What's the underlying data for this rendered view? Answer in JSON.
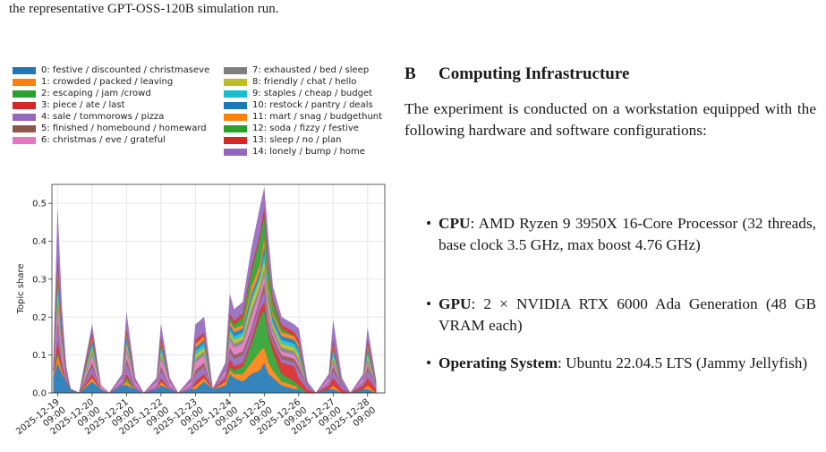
{
  "caption_tail": "the representative GPT-OSS-120B simulation run.",
  "legend": [
    {
      "label": "0: festive / discounted / christmaseve",
      "color": "#1f77b4"
    },
    {
      "label": "1: crowded / packed / leaving",
      "color": "#ff7f0e"
    },
    {
      "label": "2: escaping / jam /crowd",
      "color": "#2ca02c"
    },
    {
      "label": "3: piece / ate / last",
      "color": "#d62728"
    },
    {
      "label": "4: sale / tommorows / pizza",
      "color": "#9467bd"
    },
    {
      "label": "5: finished / homebound / homeward",
      "color": "#8c564b"
    },
    {
      "label": "6: christmas / eve / grateful",
      "color": "#e377c2"
    },
    {
      "label": "7: exhausted / bed / sleep",
      "color": "#7f7f7f"
    },
    {
      "label": "8: friendly / chat / hello",
      "color": "#bcbd22"
    },
    {
      "label": "9: staples / cheap / budget",
      "color": "#17becf"
    },
    {
      "label": "10: restock / pantry / deals",
      "color": "#1f77b4"
    },
    {
      "label": "11: mart / snag / budgethunt",
      "color": "#ff7f0e"
    },
    {
      "label": "12: soda / fizzy / festive",
      "color": "#2ca02c"
    },
    {
      "label": "13: sleep / no / plan",
      "color": "#d62728"
    },
    {
      "label": "14: lonely / bump / home",
      "color": "#9467bd"
    }
  ],
  "chart_data": {
    "type": "area",
    "stacked": true,
    "title": "",
    "xlabel": "",
    "ylabel": "Topic share",
    "ylim": [
      0,
      0.55
    ],
    "yticks": [
      "0.0",
      "0.1",
      "0.2",
      "0.3",
      "0.4",
      "0.5"
    ],
    "xticks": [
      "2025-12-19\n09:00",
      "2025-12-20\n09:00",
      "2025-12-21\n09:00",
      "2025-12-22\n09:00",
      "2025-12-23\n09:00",
      "2025-12-24\n09:00",
      "2025-12-25\n09:00",
      "2025-12-26\n09:00",
      "2025-12-27\n09:00",
      "2025-12-28\n09:00"
    ],
    "grid": true,
    "x": [
      "2025-12-19 06:00",
      "2025-12-19 09:00",
      "2025-12-19 12:00",
      "2025-12-19 15:00",
      "2025-12-19 18:00",
      "2025-12-20 00:00",
      "2025-12-20 09:00",
      "2025-12-20 15:00",
      "2025-12-20 21:00",
      "2025-12-21 06:00",
      "2025-12-21 09:00",
      "2025-12-21 15:00",
      "2025-12-21 21:00",
      "2025-12-22 06:00",
      "2025-12-22 09:00",
      "2025-12-22 15:00",
      "2025-12-22 21:00",
      "2025-12-23 06:00",
      "2025-12-23 09:00",
      "2025-12-23 15:00",
      "2025-12-23 21:00",
      "2025-12-24 06:00",
      "2025-12-24 09:00",
      "2025-12-24 12:00",
      "2025-12-24 18:00",
      "2025-12-25 00:00",
      "2025-12-25 06:00",
      "2025-12-25 09:00",
      "2025-12-25 12:00",
      "2025-12-25 15:00",
      "2025-12-25 21:00",
      "2025-12-26 06:00",
      "2025-12-26 09:00",
      "2025-12-26 15:00",
      "2025-12-26 21:00",
      "2025-12-27 06:00",
      "2025-12-27 09:00",
      "2025-12-27 15:00",
      "2025-12-27 21:00",
      "2025-12-28 06:00",
      "2025-12-28 09:00",
      "2025-12-28 15:00"
    ],
    "series": [
      {
        "name": "0: festive / discounted / christmaseve",
        "values": [
          0.04,
          0.08,
          0.05,
          0.03,
          0.01,
          0.0,
          0.03,
          0.01,
          0.0,
          0.02,
          0.02,
          0.01,
          0.0,
          0.01,
          0.02,
          0.01,
          0.0,
          0.01,
          0.01,
          0.03,
          0.01,
          0.02,
          0.05,
          0.04,
          0.03,
          0.05,
          0.06,
          0.08,
          0.05,
          0.04,
          0.02,
          0.01,
          0.01,
          0.0,
          0.0,
          0.01,
          0.01,
          0.0,
          0.0,
          0.01,
          0.01,
          0.0
        ]
      },
      {
        "name": "1: crowded / packed / leaving",
        "values": [
          0.0,
          0.02,
          0.01,
          0.0,
          0.0,
          0.0,
          0.01,
          0.0,
          0.0,
          0.0,
          0.01,
          0.0,
          0.0,
          0.0,
          0.01,
          0.0,
          0.0,
          0.0,
          0.01,
          0.01,
          0.0,
          0.01,
          0.01,
          0.01,
          0.02,
          0.03,
          0.05,
          0.04,
          0.03,
          0.02,
          0.01,
          0.01,
          0.0,
          0.0,
          0.0,
          0.0,
          0.01,
          0.0,
          0.0,
          0.0,
          0.01,
          0.0
        ]
      },
      {
        "name": "2: escaping / jam /crowd",
        "values": [
          0.0,
          0.01,
          0.0,
          0.0,
          0.0,
          0.0,
          0.0,
          0.0,
          0.0,
          0.0,
          0.01,
          0.0,
          0.0,
          0.0,
          0.0,
          0.0,
          0.0,
          0.0,
          0.0,
          0.0,
          0.0,
          0.0,
          0.01,
          0.01,
          0.02,
          0.05,
          0.09,
          0.1,
          0.07,
          0.05,
          0.02,
          0.01,
          0.01,
          0.0,
          0.0,
          0.0,
          0.0,
          0.0,
          0.0,
          0.0,
          0.0,
          0.0
        ]
      },
      {
        "name": "3: piece / ate / last",
        "values": [
          0.0,
          0.03,
          0.01,
          0.0,
          0.0,
          0.0,
          0.01,
          0.0,
          0.0,
          0.0,
          0.01,
          0.0,
          0.0,
          0.0,
          0.01,
          0.0,
          0.0,
          0.0,
          0.01,
          0.01,
          0.0,
          0.01,
          0.02,
          0.01,
          0.01,
          0.01,
          0.02,
          0.02,
          0.01,
          0.02,
          0.03,
          0.04,
          0.02,
          0.01,
          0.0,
          0.01,
          0.02,
          0.01,
          0.0,
          0.01,
          0.02,
          0.01
        ]
      },
      {
        "name": "4: sale / tommorows / pizza",
        "values": [
          0.0,
          0.04,
          0.02,
          0.01,
          0.0,
          0.0,
          0.02,
          0.0,
          0.0,
          0.01,
          0.03,
          0.01,
          0.0,
          0.01,
          0.02,
          0.01,
          0.0,
          0.01,
          0.02,
          0.02,
          0.0,
          0.01,
          0.02,
          0.02,
          0.02,
          0.02,
          0.02,
          0.03,
          0.02,
          0.01,
          0.01,
          0.01,
          0.02,
          0.01,
          0.0,
          0.01,
          0.02,
          0.01,
          0.0,
          0.01,
          0.02,
          0.01
        ]
      },
      {
        "name": "5: finished / homebound / homeward",
        "values": [
          0.0,
          0.01,
          0.0,
          0.0,
          0.0,
          0.0,
          0.01,
          0.0,
          0.0,
          0.0,
          0.01,
          0.0,
          0.0,
          0.0,
          0.01,
          0.0,
          0.0,
          0.0,
          0.01,
          0.01,
          0.0,
          0.0,
          0.01,
          0.01,
          0.01,
          0.01,
          0.01,
          0.02,
          0.01,
          0.01,
          0.01,
          0.01,
          0.01,
          0.0,
          0.0,
          0.0,
          0.01,
          0.0,
          0.0,
          0.0,
          0.01,
          0.0
        ]
      },
      {
        "name": "6: christmas / eve / grateful",
        "values": [
          0.02,
          0.04,
          0.02,
          0.01,
          0.0,
          0.0,
          0.02,
          0.01,
          0.0,
          0.01,
          0.02,
          0.01,
          0.0,
          0.01,
          0.02,
          0.01,
          0.0,
          0.01,
          0.02,
          0.02,
          0.0,
          0.01,
          0.02,
          0.02,
          0.02,
          0.03,
          0.02,
          0.02,
          0.02,
          0.01,
          0.01,
          0.01,
          0.01,
          0.0,
          0.0,
          0.01,
          0.01,
          0.0,
          0.0,
          0.01,
          0.01,
          0.0
        ]
      },
      {
        "name": "7: exhausted / bed / sleep",
        "values": [
          0.0,
          0.02,
          0.01,
          0.0,
          0.0,
          0.0,
          0.01,
          0.0,
          0.0,
          0.0,
          0.01,
          0.0,
          0.0,
          0.0,
          0.01,
          0.0,
          0.0,
          0.0,
          0.01,
          0.01,
          0.0,
          0.0,
          0.01,
          0.01,
          0.01,
          0.02,
          0.01,
          0.02,
          0.01,
          0.01,
          0.01,
          0.01,
          0.01,
          0.0,
          0.0,
          0.0,
          0.01,
          0.0,
          0.0,
          0.0,
          0.01,
          0.0
        ]
      },
      {
        "name": "8: friendly / chat / hello",
        "values": [
          0.0,
          0.02,
          0.01,
          0.0,
          0.0,
          0.0,
          0.01,
          0.0,
          0.0,
          0.0,
          0.01,
          0.0,
          0.0,
          0.0,
          0.01,
          0.0,
          0.0,
          0.0,
          0.01,
          0.01,
          0.0,
          0.0,
          0.01,
          0.01,
          0.01,
          0.02,
          0.02,
          0.02,
          0.02,
          0.01,
          0.01,
          0.01,
          0.01,
          0.0,
          0.0,
          0.0,
          0.01,
          0.0,
          0.0,
          0.0,
          0.01,
          0.0
        ]
      },
      {
        "name": "9: staples / cheap / budget",
        "values": [
          0.0,
          0.02,
          0.01,
          0.0,
          0.0,
          0.0,
          0.01,
          0.0,
          0.0,
          0.0,
          0.01,
          0.0,
          0.0,
          0.0,
          0.01,
          0.0,
          0.0,
          0.0,
          0.01,
          0.01,
          0.0,
          0.0,
          0.01,
          0.01,
          0.01,
          0.01,
          0.01,
          0.02,
          0.01,
          0.01,
          0.01,
          0.01,
          0.01,
          0.0,
          0.0,
          0.0,
          0.01,
          0.0,
          0.0,
          0.0,
          0.01,
          0.0
        ]
      },
      {
        "name": "10: restock / pantry / deals",
        "values": [
          0.0,
          0.02,
          0.01,
          0.0,
          0.0,
          0.0,
          0.01,
          0.0,
          0.0,
          0.0,
          0.01,
          0.0,
          0.0,
          0.0,
          0.01,
          0.0,
          0.0,
          0.0,
          0.01,
          0.01,
          0.0,
          0.0,
          0.01,
          0.01,
          0.01,
          0.01,
          0.01,
          0.02,
          0.01,
          0.01,
          0.01,
          0.01,
          0.01,
          0.0,
          0.0,
          0.0,
          0.01,
          0.0,
          0.0,
          0.0,
          0.01,
          0.0
        ]
      },
      {
        "name": "11: mart / snag / budgethunt",
        "values": [
          0.0,
          0.02,
          0.01,
          0.0,
          0.0,
          0.0,
          0.01,
          0.0,
          0.0,
          0.0,
          0.01,
          0.0,
          0.0,
          0.0,
          0.01,
          0.0,
          0.0,
          0.0,
          0.01,
          0.01,
          0.0,
          0.0,
          0.01,
          0.01,
          0.01,
          0.02,
          0.02,
          0.02,
          0.02,
          0.01,
          0.01,
          0.01,
          0.01,
          0.0,
          0.0,
          0.0,
          0.01,
          0.0,
          0.0,
          0.0,
          0.01,
          0.0
        ]
      },
      {
        "name": "12: soda / fizzy / festive",
        "values": [
          0.0,
          0.01,
          0.0,
          0.0,
          0.0,
          0.0,
          0.0,
          0.0,
          0.0,
          0.0,
          0.0,
          0.0,
          0.0,
          0.0,
          0.0,
          0.0,
          0.0,
          0.0,
          0.0,
          0.0,
          0.0,
          0.0,
          0.01,
          0.01,
          0.02,
          0.04,
          0.07,
          0.06,
          0.05,
          0.03,
          0.01,
          0.0,
          0.0,
          0.0,
          0.0,
          0.0,
          0.0,
          0.0,
          0.0,
          0.0,
          0.0,
          0.0
        ]
      },
      {
        "name": "13: sleep / no / plan",
        "values": [
          0.0,
          0.02,
          0.01,
          0.0,
          0.0,
          0.0,
          0.01,
          0.0,
          0.0,
          0.0,
          0.01,
          0.0,
          0.0,
          0.0,
          0.01,
          0.0,
          0.0,
          0.0,
          0.01,
          0.01,
          0.0,
          0.0,
          0.01,
          0.01,
          0.01,
          0.01,
          0.01,
          0.02,
          0.01,
          0.01,
          0.01,
          0.01,
          0.01,
          0.0,
          0.0,
          0.0,
          0.01,
          0.0,
          0.0,
          0.0,
          0.01,
          0.0
        ]
      },
      {
        "name": "14: lonely / bump / home",
        "values": [
          0.01,
          0.12,
          0.05,
          0.02,
          0.0,
          0.0,
          0.02,
          0.0,
          0.0,
          0.01,
          0.04,
          0.01,
          0.0,
          0.01,
          0.03,
          0.01,
          0.0,
          0.01,
          0.04,
          0.04,
          0.0,
          0.02,
          0.05,
          0.03,
          0.03,
          0.05,
          0.07,
          0.05,
          0.06,
          0.03,
          0.02,
          0.02,
          0.03,
          0.01,
          0.0,
          0.01,
          0.05,
          0.02,
          0.0,
          0.01,
          0.03,
          0.01
        ]
      }
    ]
  },
  "section": {
    "number": "B",
    "title": "Computing Infrastructure",
    "paragraph": "The experiment is conducted on a workstation equipped with the following hardware and software configurations:",
    "bullets": [
      {
        "label": "CPU",
        "text": ": AMD Ryzen 9 3950X 16-Core Processor (32 threads, base clock 3.5 GHz, max boost 4.76 GHz)"
      },
      {
        "label": "GPU",
        "text": ": 2 × NVIDIA RTX 6000 Ada Generation (48 GB VRAM each)"
      },
      {
        "label": "Operating System",
        "text": ":  Ubuntu 22.04.5 LTS (Jammy Jellyfish)"
      }
    ]
  }
}
